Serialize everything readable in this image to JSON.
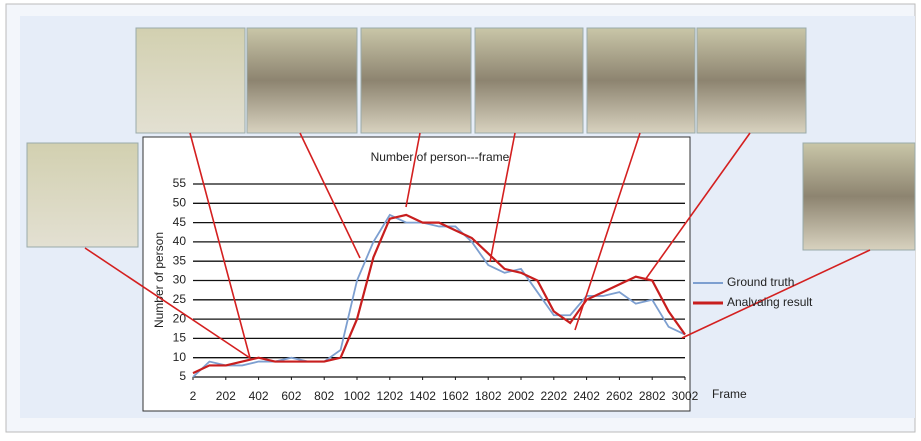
{
  "chart_data": {
    "type": "line",
    "title": "Number of person---frame",
    "y_label": "Number of person",
    "x_label": "Frame",
    "x": [
      2,
      102,
      202,
      302,
      402,
      502,
      602,
      702,
      802,
      902,
      1002,
      1102,
      1202,
      1302,
      1402,
      1502,
      1602,
      1702,
      1802,
      1902,
      2002,
      2102,
      2202,
      2302,
      2402,
      2502,
      2602,
      2702,
      2802,
      2902,
      3002
    ],
    "series": [
      {
        "name": "Ground truth",
        "color": "#7d9fd0",
        "values": [
          5,
          9,
          8,
          8,
          9,
          9,
          10,
          9,
          9,
          12,
          30,
          40,
          47,
          45,
          45,
          44,
          44,
          40,
          34,
          32,
          33,
          27,
          21,
          21,
          26,
          26,
          27,
          24,
          25,
          18,
          16
        ]
      },
      {
        "name": "Analvaing result",
        "color": "#c81e1e",
        "values": [
          6,
          8,
          8,
          9,
          10,
          9,
          9,
          9,
          9,
          10,
          20,
          36,
          46,
          47,
          45,
          45,
          43,
          41,
          37,
          33,
          32,
          30,
          22,
          19,
          25,
          27,
          29,
          31,
          30,
          22,
          16
        ]
      }
    ],
    "xlim": [
      2,
      3002
    ],
    "xticks": [
      2,
      202,
      402,
      602,
      802,
      1002,
      1202,
      1402,
      1602,
      1802,
      2002,
      2202,
      2402,
      2602,
      2802,
      3002
    ],
    "ylim": [
      5,
      55
    ],
    "yticks": [
      5,
      10,
      15,
      20,
      25,
      30,
      35,
      40,
      45,
      50,
      55
    ],
    "grid": true,
    "legend": "right"
  }
}
